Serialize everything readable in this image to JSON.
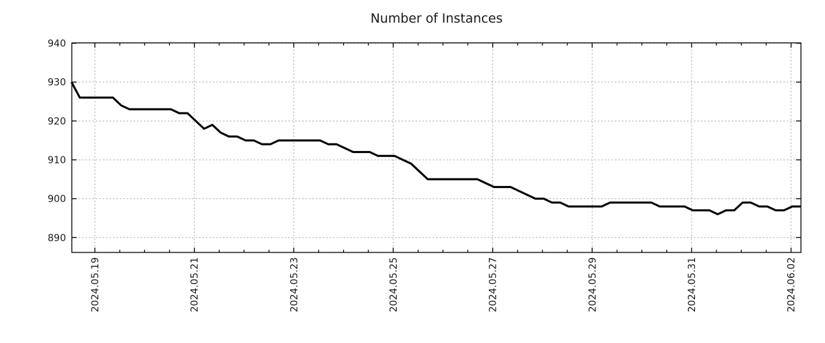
{
  "page": {
    "background": "#ffffff"
  },
  "colors": {
    "line": "#000000",
    "axis": "#000000",
    "grid": "#a3a3a3",
    "text": "#1a1a1a",
    "background": "#ffffff"
  },
  "chart_data": {
    "type": "line",
    "title": "Number of Instances",
    "xlabel": "",
    "ylabel": "",
    "legend": "none",
    "grid": "dotted",
    "y_ticks": [
      890,
      900,
      910,
      920,
      930,
      940
    ],
    "y_range": [
      886,
      940
    ],
    "x_tick_labels": [
      "2024.05.19",
      "2024.05.21",
      "2024.05.23",
      "2024.05.25",
      "2024.05.27",
      "2024.05.29",
      "2024.05.31",
      "2024.06.02"
    ],
    "x_tick_days": [
      0,
      2,
      4,
      6,
      8,
      10,
      12,
      14
    ],
    "x_range_days": [
      -0.47,
      14.19
    ],
    "x_minor_tick_interval_days": 0.5,
    "x_start_day": -0.47,
    "x_step_days": 0.1666,
    "series": [
      {
        "name": "instances",
        "color": "#000000",
        "values": [
          930,
          926,
          926,
          926,
          926,
          926,
          924,
          923,
          923,
          923,
          923,
          923,
          923,
          922,
          922,
          920,
          918,
          919,
          917,
          916,
          916,
          915,
          915,
          914,
          914,
          915,
          915,
          915,
          915,
          915,
          915,
          914,
          914,
          913,
          912,
          912,
          912,
          911,
          911,
          911,
          910,
          909,
          907,
          905,
          905,
          905,
          905,
          905,
          905,
          905,
          904,
          903,
          903,
          903,
          902,
          901,
          900,
          900,
          899,
          899,
          898,
          898,
          898,
          898,
          898,
          899,
          899,
          899,
          899,
          899,
          899,
          898,
          898,
          898,
          898,
          897,
          897,
          897,
          896,
          897,
          897,
          899,
          899,
          898,
          898,
          897,
          897,
          898,
          898
        ]
      }
    ]
  }
}
